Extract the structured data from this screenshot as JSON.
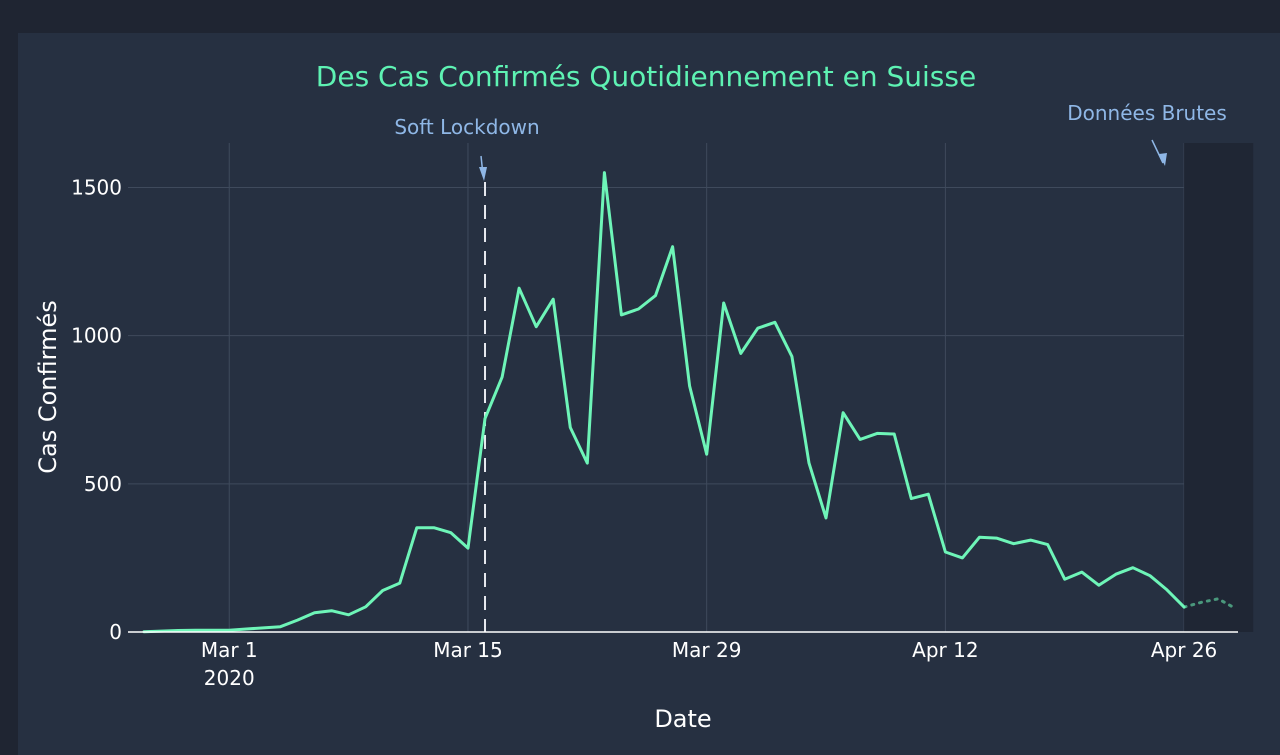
{
  "chart_data": {
    "type": "line",
    "title": "Des Cas Confirmés Quotidiennement en Suisse",
    "xlabel": "Date",
    "ylabel": "Cas Confirmés",
    "ylim": [
      0,
      1650
    ],
    "xlim": [
      "2020-02-25",
      "2020-04-29"
    ],
    "yticks": [
      0,
      500,
      1000,
      1500
    ],
    "xticks": [
      {
        "date": "2020-03-01",
        "label": "Mar 1",
        "sublabel": "2020"
      },
      {
        "date": "2020-03-15",
        "label": "Mar 15",
        "sublabel": ""
      },
      {
        "date": "2020-03-29",
        "label": "Mar 29",
        "sublabel": ""
      },
      {
        "date": "2020-04-12",
        "label": "Apr 12",
        "sublabel": ""
      },
      {
        "date": "2020-04-26",
        "label": "Apr 26",
        "sublabel": ""
      }
    ],
    "grid": true,
    "line_color": "#6ef5b8",
    "series": [
      {
        "x": [
          "2020-02-25",
          "2020-02-26",
          "2020-02-27",
          "2020-02-28",
          "2020-02-29",
          "2020-03-01",
          "2020-03-02",
          "2020-03-03",
          "2020-03-04",
          "2020-03-05",
          "2020-03-06",
          "2020-03-07",
          "2020-03-08",
          "2020-03-09",
          "2020-03-10",
          "2020-03-11",
          "2020-03-12",
          "2020-03-13",
          "2020-03-14",
          "2020-03-15",
          "2020-03-16",
          "2020-03-17",
          "2020-03-18",
          "2020-03-19",
          "2020-03-20",
          "2020-03-21",
          "2020-03-22",
          "2020-03-23",
          "2020-03-24",
          "2020-03-25",
          "2020-03-26",
          "2020-03-27",
          "2020-03-28",
          "2020-03-29",
          "2020-03-30",
          "2020-03-31",
          "2020-04-01",
          "2020-04-02",
          "2020-04-03",
          "2020-04-04",
          "2020-04-05",
          "2020-04-06",
          "2020-04-07",
          "2020-04-08",
          "2020-04-09",
          "2020-04-10",
          "2020-04-11",
          "2020-04-12",
          "2020-04-13",
          "2020-04-14",
          "2020-04-15",
          "2020-04-16",
          "2020-04-17",
          "2020-04-18",
          "2020-04-19",
          "2020-04-20",
          "2020-04-21",
          "2020-04-22",
          "2020-04-23",
          "2020-04-24",
          "2020-04-25",
          "2020-04-26"
        ],
        "values": [
          1,
          3,
          5,
          6,
          6,
          6,
          10,
          14,
          18,
          40,
          65,
          72,
          58,
          85,
          140,
          165,
          352,
          352,
          335,
          283,
          720,
          860,
          1160,
          1030,
          1123,
          690,
          570,
          1550,
          1070,
          1090,
          1135,
          1300,
          830,
          600,
          1110,
          940,
          1025,
          1045,
          930,
          570,
          385,
          740,
          650,
          670,
          668,
          450,
          465,
          270,
          250,
          320,
          317,
          298,
          310,
          295,
          178,
          202,
          158,
          195,
          217,
          190,
          142,
          84
        ]
      },
      {
        "x": [
          "2020-04-26",
          "2020-04-27",
          "2020-04-28",
          "2020-04-29"
        ],
        "values": [
          84,
          100,
          112,
          80
        ],
        "dash": "dot"
      }
    ],
    "shapes": [
      {
        "type": "vline",
        "date": "2020-03-16",
        "dash": "dash",
        "label": "Soft Lockdown"
      },
      {
        "type": "rect",
        "x0": "2020-04-26",
        "x1": "2020-04-29",
        "label": "Données Brutes"
      }
    ]
  }
}
